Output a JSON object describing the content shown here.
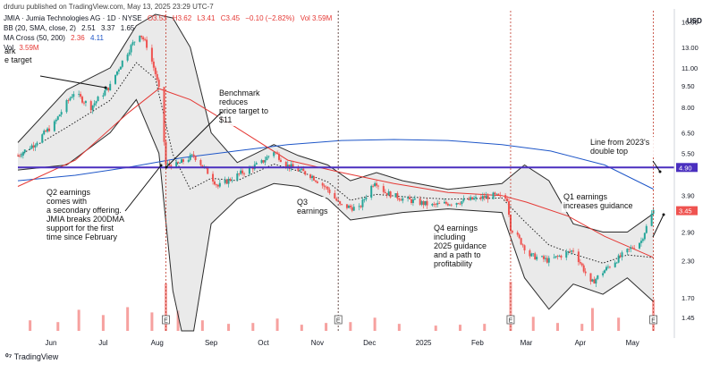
{
  "header": {
    "publisher": "drduru published on TradingView.com, May 13, 2025 23:29 UTC-7",
    "ticker_line": {
      "name": "JMIA · Jumia Technologies AG · 1D · NYSE",
      "O": "O3.53",
      "H": "H3.62",
      "L": "L3.41",
      "C": "C3.45",
      "chg": "−0.10 (−2.82%)",
      "vol": "Vol 3.59M"
    },
    "bb_line": {
      "name": "BB (20, SMA, close, 2)",
      "v1": "2.51",
      "v2": "3.37",
      "v3": "1.65"
    },
    "ma_line": {
      "name": "MA Cross (50, 200)",
      "v1": "2.36",
      "v2": "4.11"
    },
    "vol_line": {
      "name": "Vol",
      "v1": "3.59M"
    }
  },
  "footer": {
    "brand": "TradingView"
  },
  "colors": {
    "up": "#26a69a",
    "down": "#ef5350",
    "ma50": "#e53935",
    "ma200": "#1e56c8",
    "bb_fill": "#d9d9d9",
    "bb_line": "#2b2b2b",
    "hline": "#4a2fbf",
    "earnings": "#c0392b"
  },
  "chart_data": {
    "type": "candlestick",
    "ticker": "JMIA",
    "y_axis": {
      "scale": "log",
      "currency": "USD",
      "ticks": [
        16.0,
        13.0,
        11.0,
        9.5,
        8.0,
        6.5,
        5.5,
        4.9,
        3.9,
        3.45,
        2.9,
        2.3,
        1.7,
        1.45
      ],
      "ylim": [
        1.3,
        17.5
      ]
    },
    "x_axis": {
      "tick_labels": [
        "Jun",
        "Jul",
        "Aug",
        "Sep",
        "Oct",
        "Nov",
        "Dec",
        "2025",
        "Feb",
        "Mar",
        "Apr",
        "May"
      ],
      "tick_dates": [
        "2024-06-01",
        "2024-07-01",
        "2024-08-01",
        "2024-09-01",
        "2024-10-01",
        "2024-11-01",
        "2024-12-01",
        "2025-01-01",
        "2025-02-01",
        "2025-03-01",
        "2025-04-01",
        "2025-05-01"
      ],
      "range": [
        "2024-05-13",
        "2025-05-24"
      ]
    },
    "price_path": [
      [
        "2024-05-13",
        5.4
      ],
      [
        "2024-05-22",
        5.9
      ],
      [
        "2024-06-03",
        7.0
      ],
      [
        "2024-06-14",
        9.0
      ],
      [
        "2024-06-24",
        8.0
      ],
      [
        "2024-07-05",
        9.5
      ],
      [
        "2024-07-15",
        12.5
      ],
      [
        "2024-07-22",
        14.6
      ],
      [
        "2024-07-26",
        13.2
      ],
      [
        "2024-07-31",
        10.5
      ],
      [
        "2024-08-02",
        9.2
      ],
      [
        "2024-08-06",
        5.0
      ],
      [
        "2024-08-12",
        5.0
      ],
      [
        "2024-08-22",
        5.4
      ],
      [
        "2024-09-05",
        4.2
      ],
      [
        "2024-09-16",
        4.6
      ],
      [
        "2024-09-30",
        5.1
      ],
      [
        "2024-10-07",
        5.6
      ],
      [
        "2024-10-14",
        5.0
      ],
      [
        "2024-10-28",
        4.6
      ],
      [
        "2024-11-07",
        4.1
      ],
      [
        "2024-11-14",
        3.6
      ],
      [
        "2024-11-25",
        3.5
      ],
      [
        "2024-12-04",
        4.4
      ],
      [
        "2024-12-10",
        4.0
      ],
      [
        "2024-12-20",
        3.8
      ],
      [
        "2025-01-06",
        3.6
      ],
      [
        "2025-01-20",
        3.7
      ],
      [
        "2025-01-31",
        3.8
      ],
      [
        "2025-02-10",
        3.9
      ],
      [
        "2025-02-18",
        3.8
      ],
      [
        "2025-02-20",
        3.0
      ],
      [
        "2025-03-03",
        2.4
      ],
      [
        "2025-03-14",
        2.3
      ],
      [
        "2025-03-28",
        2.5
      ],
      [
        "2025-04-07",
        1.9
      ],
      [
        "2025-04-14",
        2.1
      ],
      [
        "2025-04-25",
        2.4
      ],
      [
        "2025-05-06",
        2.7
      ],
      [
        "2025-05-13",
        3.45
      ]
    ],
    "ma50": [
      [
        "2024-05-13",
        4.2
      ],
      [
        "2024-06-15",
        5.2
      ],
      [
        "2024-07-15",
        7.6
      ],
      [
        "2024-08-02",
        9.3
      ],
      [
        "2024-08-20",
        8.5
      ],
      [
        "2024-09-15",
        6.8
      ],
      [
        "2024-10-15",
        5.2
      ],
      [
        "2024-11-15",
        4.7
      ],
      [
        "2024-12-15",
        4.3
      ],
      [
        "2025-01-15",
        4.0
      ],
      [
        "2025-02-15",
        3.9
      ],
      [
        "2025-03-01",
        3.7
      ],
      [
        "2025-03-25",
        3.3
      ],
      [
        "2025-04-15",
        2.8
      ],
      [
        "2025-05-13",
        2.36
      ]
    ],
    "ma200": [
      [
        "2024-05-13",
        4.4
      ],
      [
        "2024-06-15",
        4.6
      ],
      [
        "2024-07-15",
        4.9
      ],
      [
        "2024-08-15",
        5.3
      ],
      [
        "2024-09-15",
        5.6
      ],
      [
        "2024-10-15",
        5.9
      ],
      [
        "2024-11-15",
        6.1
      ],
      [
        "2024-12-15",
        6.15
      ],
      [
        "2025-01-15",
        6.1
      ],
      [
        "2025-02-15",
        5.9
      ],
      [
        "2025-03-15",
        5.6
      ],
      [
        "2025-04-15",
        5.0
      ],
      [
        "2025-05-13",
        4.11
      ]
    ],
    "bb_upper": [
      [
        "2024-05-13",
        6.0
      ],
      [
        "2024-06-10",
        9.2
      ],
      [
        "2024-07-05",
        11.0
      ],
      [
        "2024-07-20",
        15.5
      ],
      [
        "2024-07-31",
        17.0
      ],
      [
        "2024-08-10",
        16.5
      ],
      [
        "2024-08-20",
        13.0
      ],
      [
        "2024-09-01",
        6.5
      ],
      [
        "2024-09-16",
        5.1
      ],
      [
        "2024-10-07",
        5.9
      ],
      [
        "2024-10-21",
        5.4
      ],
      [
        "2024-11-07",
        5.0
      ],
      [
        "2024-11-20",
        4.4
      ],
      [
        "2024-12-05",
        4.7
      ],
      [
        "2024-12-20",
        4.4
      ],
      [
        "2025-01-15",
        4.1
      ],
      [
        "2025-02-15",
        4.3
      ],
      [
        "2025-02-28",
        5.0
      ],
      [
        "2025-03-14",
        4.4
      ],
      [
        "2025-03-28",
        3.1
      ],
      [
        "2025-04-14",
        2.9
      ],
      [
        "2025-04-28",
        2.9
      ],
      [
        "2025-05-13",
        3.37
      ]
    ],
    "bb_lower": [
      [
        "2024-05-13",
        4.8
      ],
      [
        "2024-06-10",
        5.0
      ],
      [
        "2024-07-05",
        6.5
      ],
      [
        "2024-07-20",
        8.5
      ],
      [
        "2024-08-02",
        5.5
      ],
      [
        "2024-08-10",
        1.8
      ],
      [
        "2024-08-15",
        1.3
      ],
      [
        "2024-08-22",
        1.3
      ],
      [
        "2024-09-01",
        3.1
      ],
      [
        "2024-09-16",
        3.8
      ],
      [
        "2024-10-07",
        4.3
      ],
      [
        "2024-10-21",
        4.2
      ],
      [
        "2024-11-07",
        3.8
      ],
      [
        "2024-11-20",
        3.2
      ],
      [
        "2024-12-05",
        3.3
      ],
      [
        "2024-12-20",
        3.4
      ],
      [
        "2025-01-15",
        3.5
      ],
      [
        "2025-02-15",
        3.4
      ],
      [
        "2025-02-28",
        2.0
      ],
      [
        "2025-03-14",
        1.55
      ],
      [
        "2025-03-28",
        1.9
      ],
      [
        "2025-04-14",
        1.75
      ],
      [
        "2025-04-28",
        2.0
      ],
      [
        "2025-05-13",
        1.65
      ]
    ],
    "volume_m": [
      [
        "2024-05-20",
        1.2
      ],
      [
        "2024-06-05",
        1.0
      ],
      [
        "2024-06-17",
        2.4
      ],
      [
        "2024-07-01",
        1.8
      ],
      [
        "2024-07-15",
        2.7
      ],
      [
        "2024-07-29",
        2.1
      ],
      [
        "2024-08-06",
        5.4
      ],
      [
        "2024-08-13",
        2.3
      ],
      [
        "2024-08-27",
        1.2
      ],
      [
        "2024-09-11",
        0.8
      ],
      [
        "2024-09-25",
        0.9
      ],
      [
        "2024-10-09",
        1.4
      ],
      [
        "2024-10-23",
        0.7
      ],
      [
        "2024-11-06",
        0.9
      ],
      [
        "2024-11-20",
        1.0
      ],
      [
        "2024-12-04",
        1.5
      ],
      [
        "2024-12-18",
        0.8
      ],
      [
        "2025-01-08",
        0.6
      ],
      [
        "2025-01-22",
        0.7
      ],
      [
        "2025-02-05",
        0.8
      ],
      [
        "2025-02-20",
        5.6
      ],
      [
        "2025-03-05",
        1.6
      ],
      [
        "2025-03-19",
        0.9
      ],
      [
        "2025-04-02",
        0.8
      ],
      [
        "2025-04-08",
        2.6
      ],
      [
        "2025-04-23",
        1.5
      ],
      [
        "2025-05-13",
        3.59
      ]
    ],
    "price_marker": {
      "date": "2025-05-13",
      "price": 3.45,
      "label": "3.45"
    },
    "horizontal_line": {
      "price": 4.9,
      "label": "4.90"
    },
    "earnings_dates": [
      "2024-08-06",
      "2024-11-13",
      "2025-02-20",
      "2025-05-13"
    ],
    "event_markers": [
      {
        "date": "2024-08-06",
        "letter": "E"
      },
      {
        "date": "2024-11-13",
        "letter": "E"
      },
      {
        "date": "2025-02-20",
        "letter": "E"
      },
      {
        "date": "2025-05-13",
        "letter": "E"
      }
    ],
    "annotations": [
      {
        "text": [
          "ark",
          "e target"
        ]
      },
      {
        "text": [
          "Benchmark",
          "reduces",
          "price target to",
          "$11"
        ]
      },
      {
        "text": [
          "Q2 earnings",
          "comes with",
          "a secondary offering.",
          "JMIA breaks 200DMA",
          "support for the first",
          "time since February"
        ]
      },
      {
        "text": [
          "Q3",
          "earnings"
        ]
      },
      {
        "text": [
          "Q4 earnings",
          "including",
          "2025 guidance",
          "and a path to",
          "profitability"
        ]
      },
      {
        "text": [
          "Line from 2023's",
          "double top"
        ]
      },
      {
        "text": [
          "Q1 earnings",
          "increases guidance"
        ]
      }
    ]
  }
}
